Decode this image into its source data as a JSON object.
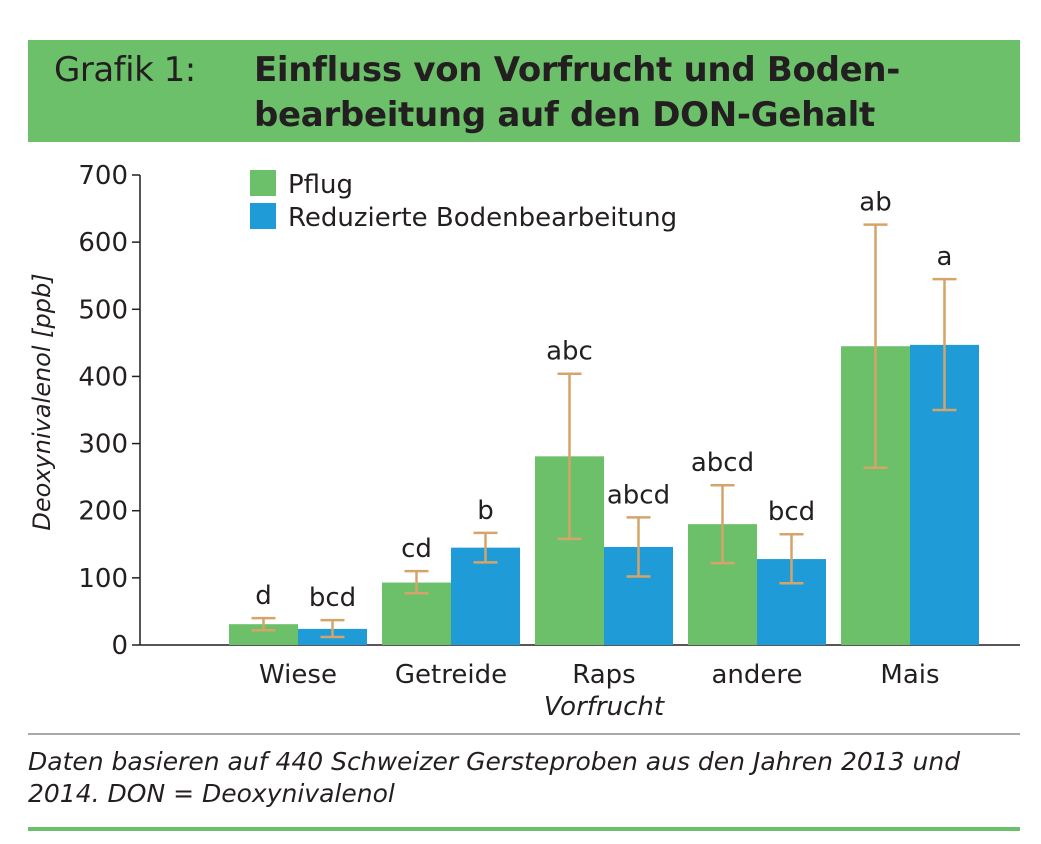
{
  "header": {
    "label": "Grafik 1:",
    "title": "Einfluss von Vorfrucht und Boden-bearbeitung auf den DON-Gehalt"
  },
  "chart_data": {
    "type": "bar",
    "title": "Einfluss von Vorfrucht und Boden-bearbeitung auf den DON-Gehalt",
    "xlabel": "Vorfrucht",
    "ylabel": "Deoxynivalenol [ppb]",
    "ylim": [
      0,
      700
    ],
    "yticks": [
      0,
      100,
      200,
      300,
      400,
      500,
      600,
      700
    ],
    "categories": [
      "Wiese",
      "Getreide",
      "Raps",
      "andere",
      "Mais"
    ],
    "legend_position": "top-left",
    "series": [
      {
        "name": "Pflug",
        "color": "#6cc06a",
        "values": [
          31,
          93,
          281,
          180,
          445
        ],
        "error_low": [
          22,
          77,
          158,
          122,
          264
        ],
        "error_high": [
          40,
          110,
          404,
          238,
          626
        ],
        "letters": [
          "d",
          "cd",
          "abc",
          "abcd",
          "ab"
        ]
      },
      {
        "name": "Reduzierte Bodenbearbeitung",
        "color": "#1f9bd7",
        "values": [
          24,
          145,
          146,
          128,
          447
        ],
        "error_low": [
          12,
          123,
          102,
          92,
          350
        ],
        "error_high": [
          37,
          167,
          190,
          165,
          545
        ],
        "letters": [
          "bcd",
          "b",
          "abcd",
          "bcd",
          "a"
        ]
      }
    ],
    "error_bar_color": "#d4a46a"
  },
  "caption": {
    "text": "Daten basieren auf 440 Schweizer Gersteproben aus den Jahren 2013 und 2014. DON = Deoxynivalenol"
  }
}
